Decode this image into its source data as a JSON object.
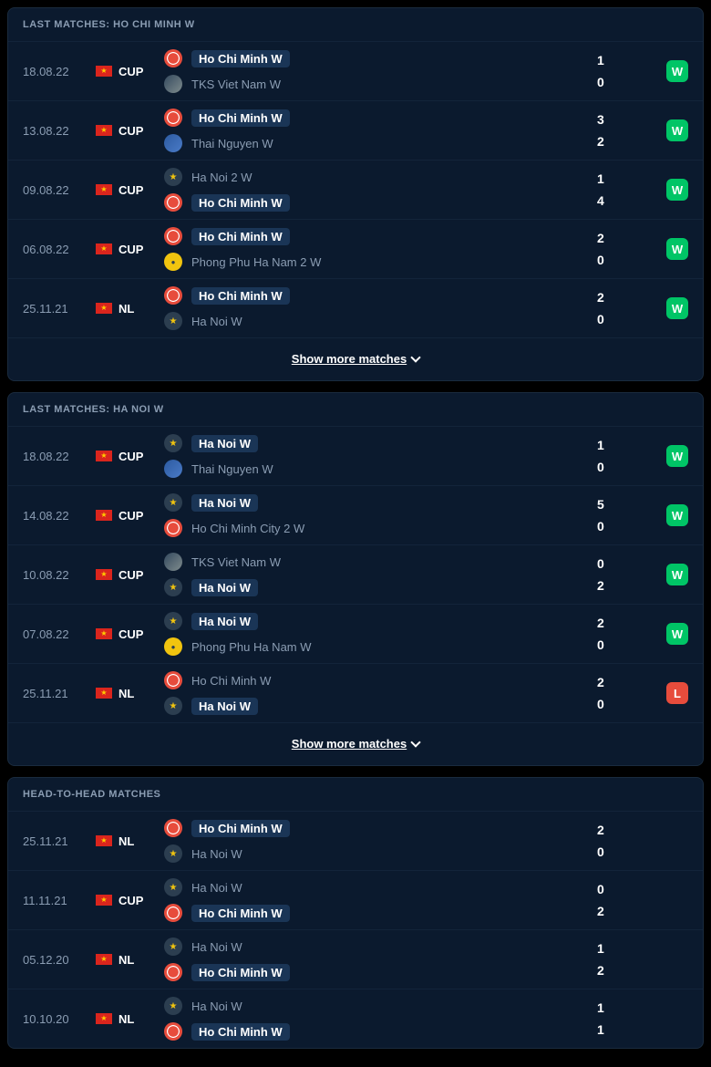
{
  "sections": [
    {
      "title": "LAST MATCHES: HO CHI MINH W",
      "showMore": "Show more matches",
      "matches": [
        {
          "date": "18.08.22",
          "comp": "CUP",
          "team1": {
            "name": "Ho Chi Minh W",
            "badge": "hcm",
            "hl": true
          },
          "team2": {
            "name": "TKS Viet Nam W",
            "badge": "tks",
            "hl": false
          },
          "s1": "1",
          "s2": "0",
          "res": "W"
        },
        {
          "date": "13.08.22",
          "comp": "CUP",
          "team1": {
            "name": "Ho Chi Minh W",
            "badge": "hcm",
            "hl": true
          },
          "team2": {
            "name": "Thai Nguyen W",
            "badge": "thainguyen",
            "hl": false
          },
          "s1": "3",
          "s2": "2",
          "res": "W"
        },
        {
          "date": "09.08.22",
          "comp": "CUP",
          "team1": {
            "name": "Ha Noi 2 W",
            "badge": "hanoi2",
            "hl": false
          },
          "team2": {
            "name": "Ho Chi Minh W",
            "badge": "hcm",
            "hl": true
          },
          "s1": "1",
          "s2": "4",
          "res": "W"
        },
        {
          "date": "06.08.22",
          "comp": "CUP",
          "team1": {
            "name": "Ho Chi Minh W",
            "badge": "hcm",
            "hl": true
          },
          "team2": {
            "name": "Phong Phu Ha Nam 2 W",
            "badge": "phongphu",
            "hl": false
          },
          "s1": "2",
          "s2": "0",
          "res": "W"
        },
        {
          "date": "25.11.21",
          "comp": "NL",
          "team1": {
            "name": "Ho Chi Minh W",
            "badge": "hcm",
            "hl": true
          },
          "team2": {
            "name": "Ha Noi W",
            "badge": "hanoi",
            "hl": false
          },
          "s1": "2",
          "s2": "0",
          "res": "W"
        }
      ]
    },
    {
      "title": "LAST MATCHES: HA NOI W",
      "showMore": "Show more matches",
      "matches": [
        {
          "date": "18.08.22",
          "comp": "CUP",
          "team1": {
            "name": "Ha Noi W",
            "badge": "hanoi",
            "hl": true
          },
          "team2": {
            "name": "Thai Nguyen W",
            "badge": "thainguyen",
            "hl": false
          },
          "s1": "1",
          "s2": "0",
          "res": "W"
        },
        {
          "date": "14.08.22",
          "comp": "CUP",
          "team1": {
            "name": "Ha Noi W",
            "badge": "hanoi",
            "hl": true
          },
          "team2": {
            "name": "Ho Chi Minh City 2 W",
            "badge": "hcmcity2",
            "hl": false
          },
          "s1": "5",
          "s2": "0",
          "res": "W"
        },
        {
          "date": "10.08.22",
          "comp": "CUP",
          "team1": {
            "name": "TKS Viet Nam W",
            "badge": "tks",
            "hl": false
          },
          "team2": {
            "name": "Ha Noi W",
            "badge": "hanoi",
            "hl": true
          },
          "s1": "0",
          "s2": "2",
          "res": "W"
        },
        {
          "date": "07.08.22",
          "comp": "CUP",
          "team1": {
            "name": "Ha Noi W",
            "badge": "hanoi",
            "hl": true
          },
          "team2": {
            "name": "Phong Phu Ha Nam W",
            "badge": "phongphu",
            "hl": false
          },
          "s1": "2",
          "s2": "0",
          "res": "W"
        },
        {
          "date": "25.11.21",
          "comp": "NL",
          "team1": {
            "name": "Ho Chi Minh W",
            "badge": "hcm",
            "hl": false
          },
          "team2": {
            "name": "Ha Noi W",
            "badge": "hanoi",
            "hl": true
          },
          "s1": "2",
          "s2": "0",
          "res": "L"
        }
      ]
    },
    {
      "title": "HEAD-TO-HEAD MATCHES",
      "matches": [
        {
          "date": "25.11.21",
          "comp": "NL",
          "team1": {
            "name": "Ho Chi Minh W",
            "badge": "hcm",
            "hl": true
          },
          "team2": {
            "name": "Ha Noi W",
            "badge": "hanoi",
            "hl": false
          },
          "s1": "2",
          "s2": "0"
        },
        {
          "date": "11.11.21",
          "comp": "CUP",
          "team1": {
            "name": "Ha Noi W",
            "badge": "hanoi",
            "hl": false
          },
          "team2": {
            "name": "Ho Chi Minh W",
            "badge": "hcm",
            "hl": true
          },
          "s1": "0",
          "s2": "2"
        },
        {
          "date": "05.12.20",
          "comp": "NL",
          "team1": {
            "name": "Ha Noi W",
            "badge": "hanoi",
            "hl": false
          },
          "team2": {
            "name": "Ho Chi Minh W",
            "badge": "hcm",
            "hl": true
          },
          "s1": "1",
          "s2": "2"
        },
        {
          "date": "10.10.20",
          "comp": "NL",
          "team1": {
            "name": "Ha Noi W",
            "badge": "hanoi",
            "hl": false
          },
          "team2": {
            "name": "Ho Chi Minh W",
            "badge": "hcm",
            "hl": true
          },
          "s1": "1",
          "s2": "1"
        }
      ]
    }
  ]
}
